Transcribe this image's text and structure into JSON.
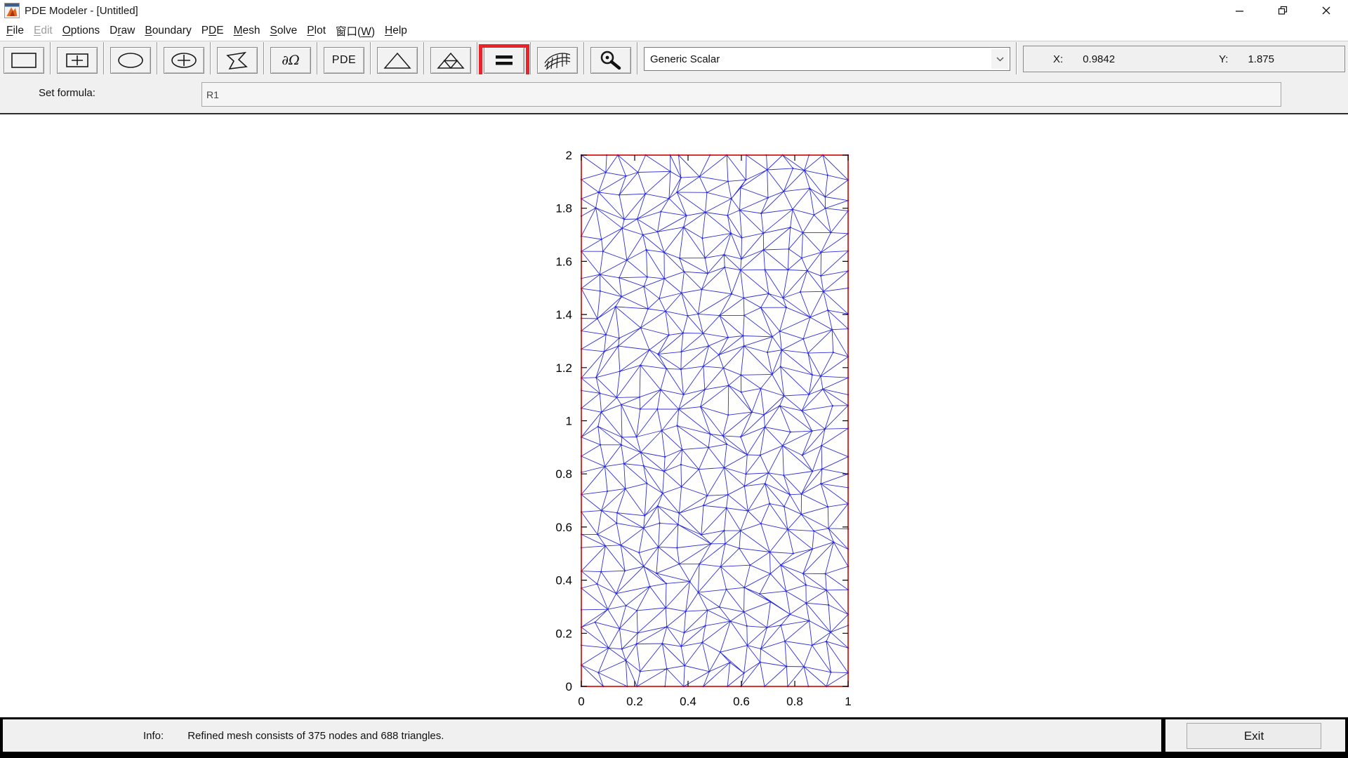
{
  "window": {
    "title": "PDE Modeler - [Untitled]"
  },
  "menu": {
    "items": [
      {
        "pre": "",
        "key": "F",
        "post": "ile",
        "enabled": true
      },
      {
        "pre": "",
        "key": "E",
        "post": "dit",
        "enabled": false
      },
      {
        "pre": "",
        "key": "O",
        "post": "ptions",
        "enabled": true
      },
      {
        "pre": "D",
        "key": "r",
        "post": "aw",
        "enabled": true
      },
      {
        "pre": "",
        "key": "B",
        "post": "oundary",
        "enabled": true
      },
      {
        "pre": "P",
        "key": "D",
        "post": "E",
        "enabled": true
      },
      {
        "pre": "",
        "key": "M",
        "post": "esh",
        "enabled": true
      },
      {
        "pre": "",
        "key": "S",
        "post": "olve",
        "enabled": true
      },
      {
        "pre": "",
        "key": "P",
        "post": "lot",
        "enabled": true
      },
      {
        "pre": "窗口(",
        "key": "W",
        "post": ")",
        "enabled": true
      },
      {
        "pre": "",
        "key": "H",
        "post": "elp",
        "enabled": true
      }
    ]
  },
  "toolbar": {
    "buttons": [
      {
        "name": "draw-rectangle"
      },
      {
        "name": "draw-rectangle-centered"
      },
      {
        "name": "draw-ellipse"
      },
      {
        "name": "draw-ellipse-centered"
      },
      {
        "name": "draw-polygon"
      },
      {
        "name": "boundary-mode",
        "label": "∂Ω"
      },
      {
        "name": "pde-specification",
        "label": "PDE"
      },
      {
        "name": "initialize-mesh"
      },
      {
        "name": "refine-mesh"
      },
      {
        "name": "solve-pde",
        "highlighted": true
      },
      {
        "name": "plot-solution-3d"
      },
      {
        "name": "zoom"
      }
    ],
    "plot_type_value": "Generic Scalar",
    "coords": {
      "x_label": "X:",
      "x_value": "0.9842",
      "y_label": "Y:",
      "y_value": "1.875"
    }
  },
  "formula": {
    "label": "Set formula:",
    "value": "R1"
  },
  "chart_data": {
    "type": "mesh",
    "x_range": [
      0,
      1
    ],
    "y_range": [
      0,
      2
    ],
    "x_ticks": [
      0,
      0.2,
      0.4,
      0.6,
      0.8,
      1
    ],
    "x_tick_labels": [
      "0",
      "0.2",
      "0.4",
      "0.6",
      "0.8",
      "1"
    ],
    "y_ticks": [
      0,
      0.2,
      0.4,
      0.6,
      0.8,
      1,
      1.2,
      1.4,
      1.6,
      1.8,
      2
    ],
    "y_tick_labels": [
      "0",
      "0.2",
      "0.4",
      "0.6",
      "0.8",
      "1",
      "1.2",
      "1.4",
      "1.6",
      "1.8",
      "2"
    ],
    "mesh_nodes": 375,
    "mesh_triangles": 688,
    "mesh_grid": {
      "cols": 14,
      "rows": 28,
      "jitter": 0.34,
      "seed": 11
    },
    "colors": {
      "boundary": "#d40000",
      "mesh_line": "#2e2ed8",
      "tick": "#000000"
    }
  },
  "status": {
    "info_label": "Info:",
    "message": "Refined mesh consists of 375 nodes and 688 triangles.",
    "exit_label": "Exit"
  },
  "colors": {
    "highlight": "#e8232a"
  }
}
